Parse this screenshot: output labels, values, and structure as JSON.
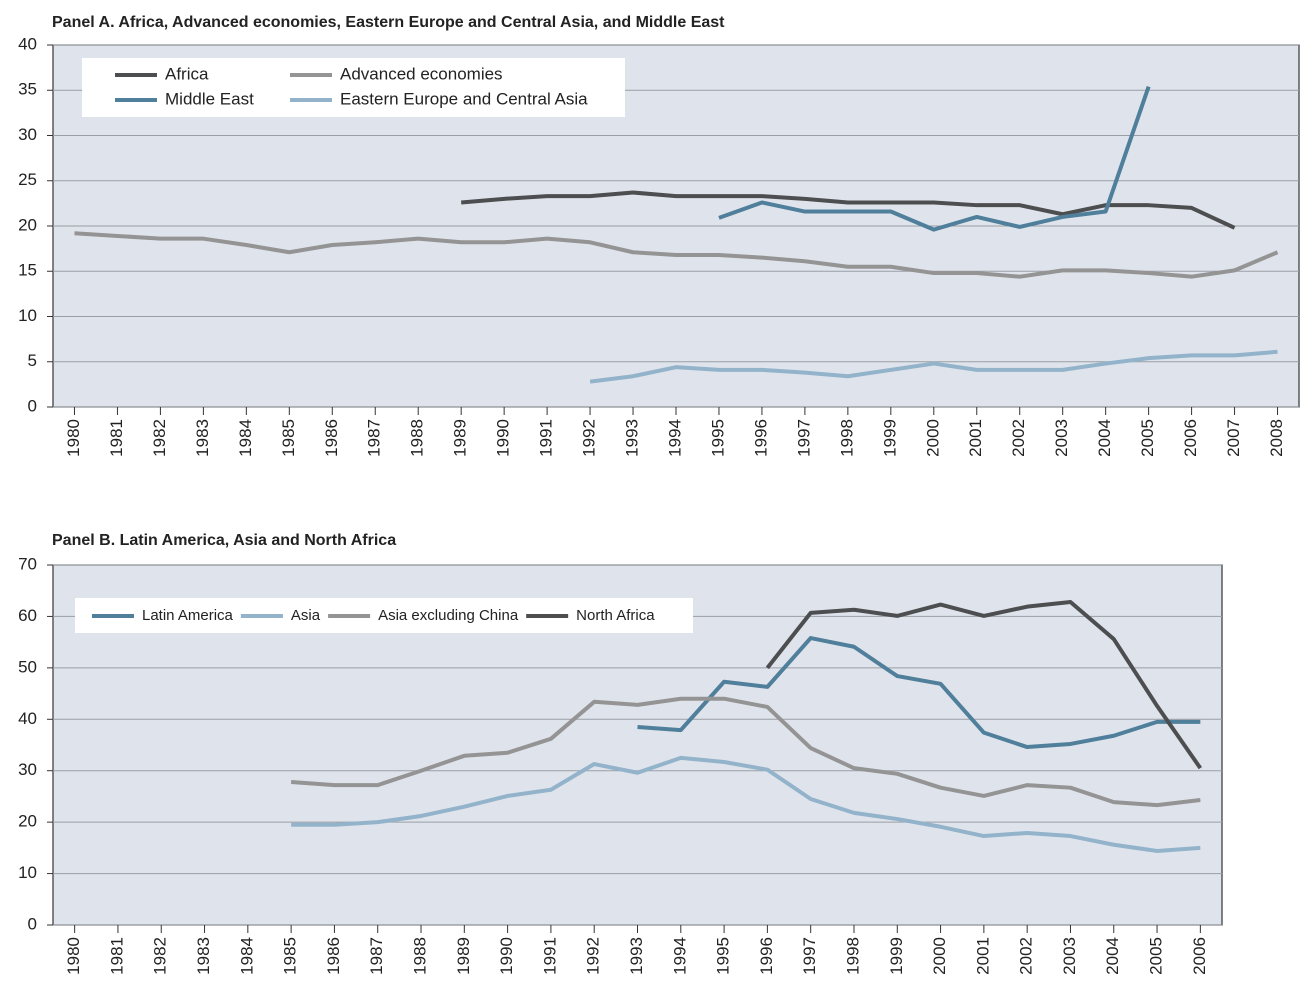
{
  "chart_data": [
    {
      "type": "line",
      "title": "Panel A.  Africa, Advanced economies, Eastern Europe and Central Asia, and Middle East",
      "x": [
        1980,
        1981,
        1982,
        1983,
        1984,
        1985,
        1986,
        1987,
        1988,
        1989,
        1990,
        1991,
        1992,
        1993,
        1994,
        1995,
        1996,
        1997,
        1998,
        1999,
        2000,
        2001,
        2002,
        2003,
        2004,
        2005,
        2006,
        2007,
        2008
      ],
      "xlim": [
        1979.5,
        2008.5
      ],
      "xticks": [
        1980,
        1981,
        1982,
        1983,
        1984,
        1985,
        1986,
        1987,
        1988,
        1989,
        1990,
        1991,
        1992,
        1993,
        1994,
        1995,
        1996,
        1997,
        1998,
        1999,
        2000,
        2001,
        2002,
        2003,
        2004,
        2005,
        2006,
        2007,
        2008
      ],
      "ylim": [
        0,
        40
      ],
      "yticks": [
        0,
        5,
        10,
        15,
        20,
        25,
        30,
        35,
        40
      ],
      "grid": true,
      "series": [
        {
          "name": "Africa",
          "color": "#4d4e50",
          "values": [
            null,
            null,
            null,
            null,
            null,
            null,
            null,
            null,
            null,
            22.6,
            23,
            23.3,
            23.3,
            23.7,
            23.3,
            23.3,
            23.3,
            23,
            22.6,
            22.6,
            22.6,
            22.3,
            22.3,
            21.3,
            22.3,
            22.3,
            22,
            19.8,
            null
          ]
        },
        {
          "name": "Middle East",
          "color": "#4f7f9b",
          "values": [
            null,
            null,
            null,
            null,
            null,
            null,
            null,
            null,
            null,
            null,
            null,
            null,
            null,
            null,
            null,
            20.9,
            22.6,
            21.6,
            21.6,
            21.6,
            19.6,
            21,
            19.9,
            21,
            21.6,
            35.4,
            null,
            null,
            null
          ]
        },
        {
          "name": "Advanced economies",
          "color": "#949494",
          "values": [
            19.2,
            18.9,
            18.6,
            18.6,
            17.9,
            17.1,
            17.9,
            18.2,
            18.6,
            18.2,
            18.2,
            18.6,
            18.2,
            17.1,
            16.8,
            16.8,
            16.5,
            16.1,
            15.5,
            15.5,
            14.8,
            14.8,
            14.4,
            15.1,
            15.1,
            14.8,
            14.4,
            15.1,
            17.1
          ]
        },
        {
          "name": "Eastern Europe and Central Asia",
          "color": "#93b3cb",
          "values": [
            null,
            null,
            null,
            null,
            null,
            null,
            null,
            null,
            null,
            null,
            null,
            null,
            2.8,
            3.4,
            4.4,
            4.1,
            4.1,
            3.8,
            3.4,
            4.1,
            4.8,
            4.1,
            4.1,
            4.1,
            4.8,
            5.4,
            5.7,
            5.7,
            6.1
          ]
        }
      ]
    },
    {
      "type": "line",
      "title": "Panel B.  Latin America, Asia and North Africa",
      "x": [
        1980,
        1981,
        1982,
        1983,
        1984,
        1985,
        1986,
        1987,
        1988,
        1989,
        1990,
        1991,
        1992,
        1993,
        1994,
        1995,
        1996,
        1997,
        1998,
        1999,
        2000,
        2001,
        2002,
        2003,
        2004,
        2005,
        2006
      ],
      "xlim": [
        1979.5,
        2006.5
      ],
      "xticks": [
        1980,
        1981,
        1982,
        1983,
        1984,
        1985,
        1986,
        1987,
        1988,
        1989,
        1990,
        1991,
        1992,
        1993,
        1994,
        1995,
        1996,
        1997,
        1998,
        1999,
        2000,
        2001,
        2002,
        2003,
        2004,
        2005,
        2006
      ],
      "ylim": [
        0,
        70
      ],
      "yticks": [
        0,
        10,
        20,
        30,
        40,
        50,
        60,
        70
      ],
      "grid": true,
      "series": [
        {
          "name": "Latin America",
          "color": "#4f7f9b",
          "values": [
            null,
            null,
            null,
            null,
            null,
            null,
            null,
            null,
            null,
            null,
            null,
            null,
            null,
            38.5,
            37.9,
            47.3,
            46.3,
            55.8,
            54.1,
            48.4,
            46.9,
            37.4,
            34.6,
            35.2,
            36.8,
            39.5,
            39.5
          ]
        },
        {
          "name": "Asia",
          "color": "#93b3cb",
          "values": [
            null,
            null,
            null,
            null,
            null,
            19.5,
            19.5,
            20,
            21.2,
            23,
            25.1,
            26.3,
            31.3,
            29.6,
            32.5,
            31.7,
            30.2,
            24.5,
            21.8,
            20.6,
            19.1,
            17.3,
            17.9,
            17.3,
            15.6,
            14.4,
            15
          ]
        },
        {
          "name": "Asia excluding China",
          "color": "#949494",
          "values": [
            null,
            null,
            null,
            null,
            null,
            27.8,
            27.2,
            27.2,
            30,
            32.9,
            33.5,
            36.2,
            43.4,
            42.8,
            44,
            44,
            42.4,
            34.4,
            30.5,
            29.4,
            26.7,
            25.1,
            27.2,
            26.7,
            23.9,
            23.3,
            24.3
          ]
        },
        {
          "name": "North Africa",
          "color": "#4d4e50",
          "values": [
            null,
            null,
            null,
            null,
            null,
            null,
            null,
            null,
            null,
            null,
            null,
            null,
            null,
            null,
            null,
            null,
            50,
            60.7,
            61.3,
            60.1,
            62.3,
            60.1,
            61.9,
            62.8,
            55.6,
            42.6,
            30.5
          ]
        }
      ]
    }
  ]
}
